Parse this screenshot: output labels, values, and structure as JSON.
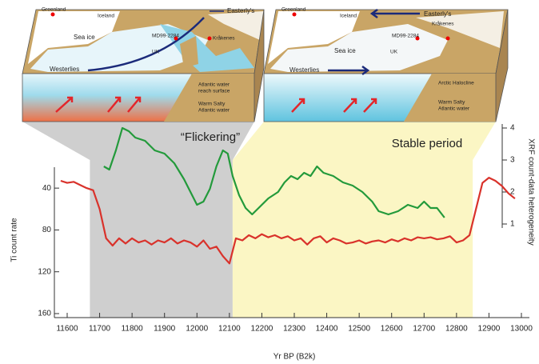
{
  "chart_data": {
    "type": "line",
    "annotations": [
      "“Flickering”",
      "Stable period"
    ],
    "xlabel": "Yr BP (B2k)",
    "ylabel": "Ti count rate",
    "y2label": "XRF count-data heterogeneity",
    "xlim": [
      11600,
      13000
    ],
    "xticks": [
      11600,
      11700,
      11800,
      11900,
      12000,
      12100,
      12200,
      12300,
      12400,
      12500,
      12600,
      12700,
      12800,
      12900,
      13000
    ],
    "ylim": [
      160,
      20
    ],
    "yticks": [
      40,
      80,
      120,
      160
    ],
    "y2lim": [
      1,
      4
    ],
    "y2ticks": [
      1,
      2,
      3,
      4
    ],
    "spans": [
      {
        "start": 11670,
        "end": 12110,
        "color": "#cfcfcf"
      },
      {
        "start": 12110,
        "end": 12850,
        "color": "#fbf6c4"
      }
    ],
    "series": [
      {
        "color": "#d9322b",
        "x": [
          11580,
          11600,
          11620,
          11640,
          11660,
          11680,
          11700,
          11720,
          11740,
          11760,
          11780,
          11800,
          11820,
          11840,
          11860,
          11880,
          11900,
          11920,
          11940,
          11960,
          11980,
          12000,
          12020,
          12040,
          12060,
          12080,
          12100,
          12120,
          12140,
          12160,
          12180,
          12200,
          12220,
          12240,
          12260,
          12280,
          12300,
          12320,
          12340,
          12360,
          12380,
          12400,
          12420,
          12440,
          12460,
          12480,
          12500,
          12520,
          12540,
          12560,
          12580,
          12600,
          12620,
          12640,
          12660,
          12680,
          12700,
          12720,
          12740,
          12760,
          12780,
          12800,
          12820,
          12840,
          12860,
          12880,
          12900,
          12920,
          12940,
          12960,
          12980
        ],
        "values": [
          33,
          35,
          34,
          37,
          40,
          42,
          60,
          88,
          95,
          88,
          93,
          88,
          92,
          90,
          94,
          90,
          92,
          88,
          93,
          90,
          92,
          96,
          90,
          98,
          96,
          105,
          112,
          88,
          90,
          85,
          88,
          84,
          87,
          85,
          88,
          86,
          90,
          88,
          94,
          88,
          86,
          92,
          88,
          90,
          93,
          92,
          90,
          93,
          91,
          90,
          92,
          89,
          91,
          88,
          90,
          87,
          88,
          87,
          89,
          88,
          86,
          92,
          90,
          85,
          60,
          35,
          30,
          33,
          38,
          45,
          50
        ]
      },
      {
        "color": "#239a3b",
        "axis": "y2",
        "x": [
          11713,
          11730,
          11750,
          11770,
          11790,
          11810,
          11840,
          11870,
          11900,
          11930,
          11960,
          11980,
          12000,
          12020,
          12040,
          12060,
          12080,
          12095,
          12110,
          12130,
          12150,
          12170,
          12190,
          12220,
          12250,
          12270,
          12290,
          12310,
          12330,
          12350,
          12370,
          12390,
          12420,
          12450,
          12480,
          12510,
          12540,
          12560,
          12590,
          12620,
          12650,
          12680,
          12700,
          12720,
          12740,
          12763
        ],
        "values": [
          2.8,
          2.7,
          3.3,
          4.0,
          3.9,
          3.7,
          3.6,
          3.3,
          3.2,
          2.9,
          2.4,
          2.0,
          1.6,
          1.7,
          2.1,
          2.8,
          3.3,
          3.2,
          2.5,
          1.9,
          1.5,
          1.3,
          1.5,
          1.8,
          2.0,
          2.3,
          2.5,
          2.4,
          2.6,
          2.5,
          2.8,
          2.6,
          2.5,
          2.3,
          2.2,
          2.0,
          1.7,
          1.4,
          1.3,
          1.4,
          1.6,
          1.5,
          1.7,
          1.5,
          1.5,
          1.2
        ]
      }
    ]
  },
  "diagram": {
    "left": {
      "greenland": "Greenland",
      "iceland": "Iceland",
      "sea_ice": "Sea ice",
      "core": "MD99-2284",
      "uk": "UK",
      "site": "Kråkenes",
      "easterlies": "Easterly's",
      "westerlies": "Westerlies",
      "water1": "Atlantic water",
      "water2": "reach surface",
      "water3": "Warm Salty",
      "water4": "Atlantic water"
    },
    "right": {
      "greenland": "Greenland",
      "iceland": "Iceland",
      "sea_ice": "Sea ice",
      "core": "MD99-2284",
      "uk": "UK",
      "site": "Kråkenes",
      "easterlies": "Easterly's",
      "westerlies": "Westerlies",
      "water1": "Arctic Halocline",
      "water3": "Warm Salty",
      "water4": "Atlantic water"
    }
  }
}
